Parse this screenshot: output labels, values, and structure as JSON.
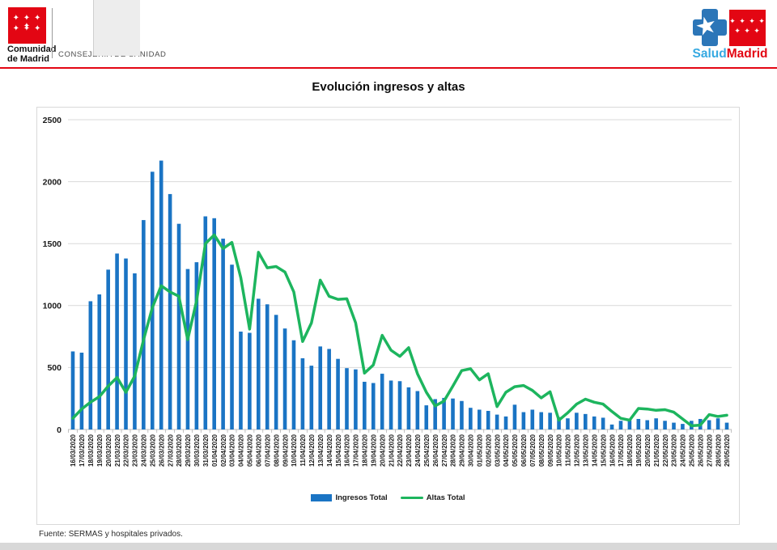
{
  "header": {
    "org_name": "Comunidad\nde Madrid",
    "org_name_line1": "Comunidad",
    "org_name_line2": "de Madrid",
    "department": "CONSEJERÍA DE SANIDAD",
    "flag_stars_row1": "✦ ✦ ✦ ✦",
    "flag_stars_row2": "✦ ✦ ✦",
    "brand_salud": "Salud",
    "brand_madrid": "Madrid",
    "accent_red": "#e30613",
    "brand_blue": "#2c76b8",
    "brand_lightblue": "#36a9e1"
  },
  "title": "Evolución ingresos y altas",
  "legend": {
    "ingresos_label": "Ingresos Total",
    "altas_label": "Altas Total"
  },
  "footer": {
    "source": "Fuente: SERMAS y hospitales privados."
  },
  "chart_data": {
    "type": "bar",
    "title": "Evolución ingresos y altas",
    "xlabel": "",
    "ylabel": "",
    "ylim": [
      0,
      2500
    ],
    "yticks": [
      0,
      500,
      1000,
      1500,
      2000,
      2500
    ],
    "grid": true,
    "legend_position": "bottom",
    "bar_color": "#1a74c4",
    "line_color": "#1db55e",
    "categories": [
      "16/03/2020",
      "17/03/2020",
      "18/03/2020",
      "19/03/2020",
      "20/03/2020",
      "21/03/2020",
      "22/03/2020",
      "23/03/2020",
      "24/03/2020",
      "25/03/2020",
      "26/03/2020",
      "27/03/2020",
      "28/03/2020",
      "29/03/2020",
      "30/03/2020",
      "31/03/2020",
      "01/04/2020",
      "02/04/2020",
      "03/04/2020",
      "04/04/2020",
      "05/04/2020",
      "06/04/2020",
      "07/04/2020",
      "08/04/2020",
      "09/04/2020",
      "10/04/2020",
      "11/04/2020",
      "12/04/2020",
      "13/04/2020",
      "14/04/2020",
      "15/04/2020",
      "16/04/2020",
      "17/04/2020",
      "18/04/2020",
      "19/04/2020",
      "20/04/2020",
      "21/04/2020",
      "22/04/2020",
      "23/04/2020",
      "24/04/2020",
      "25/04/2020",
      "26/04/2020",
      "27/04/2020",
      "28/04/2020",
      "29/04/2020",
      "30/04/2020",
      "01/05/2020",
      "02/05/2020",
      "03/05/2020",
      "04/05/2020",
      "05/05/2020",
      "06/05/2020",
      "07/05/2020",
      "08/05/2020",
      "09/05/2020",
      "10/05/2020",
      "11/05/2020",
      "12/05/2020",
      "13/05/2020",
      "14/05/2020",
      "15/05/2020",
      "16/05/2020",
      "17/05/2020",
      "18/05/2020",
      "19/05/2020",
      "20/05/2020",
      "21/05/2020",
      "22/05/2020",
      "23/05/2020",
      "24/05/2020",
      "25/05/2020",
      "26/05/2020",
      "27/05/2020",
      "28/05/2020",
      "29/05/2020"
    ],
    "series": [
      {
        "name": "Ingresos Total",
        "type": "bar",
        "color": "#1a74c4",
        "values": [
          630,
          620,
          1035,
          1090,
          1290,
          1420,
          1380,
          1260,
          1690,
          2080,
          2170,
          1900,
          1660,
          1295,
          1350,
          1720,
          1705,
          1540,
          1330,
          790,
          780,
          1055,
          1010,
          925,
          815,
          720,
          575,
          515,
          670,
          650,
          570,
          495,
          485,
          385,
          375,
          450,
          395,
          390,
          340,
          310,
          195,
          245,
          255,
          250,
          230,
          175,
          160,
          150,
          120,
          105,
          200,
          140,
          160,
          140,
          135,
          100,
          90,
          135,
          125,
          105,
          95,
          40,
          70,
          75,
          85,
          75,
          90,
          70,
          55,
          45,
          70,
          85,
          75,
          90,
          55
        ]
      },
      {
        "name": "Altas Total",
        "type": "line",
        "color": "#1db55e",
        "values": [
          90,
          165,
          220,
          265,
          350,
          420,
          300,
          430,
          725,
          985,
          1160,
          1110,
          1075,
          725,
          1040,
          1500,
          1570,
          1460,
          1510,
          1225,
          810,
          1430,
          1305,
          1315,
          1270,
          1110,
          710,
          860,
          1205,
          1075,
          1050,
          1055,
          860,
          455,
          520,
          760,
          640,
          590,
          660,
          450,
          300,
          190,
          230,
          350,
          475,
          490,
          400,
          450,
          185,
          300,
          345,
          355,
          315,
          255,
          305,
          75,
          135,
          205,
          245,
          220,
          205,
          145,
          90,
          75,
          170,
          165,
          155,
          160,
          140,
          85,
          30,
          35,
          120,
          105,
          115
        ]
      }
    ]
  }
}
